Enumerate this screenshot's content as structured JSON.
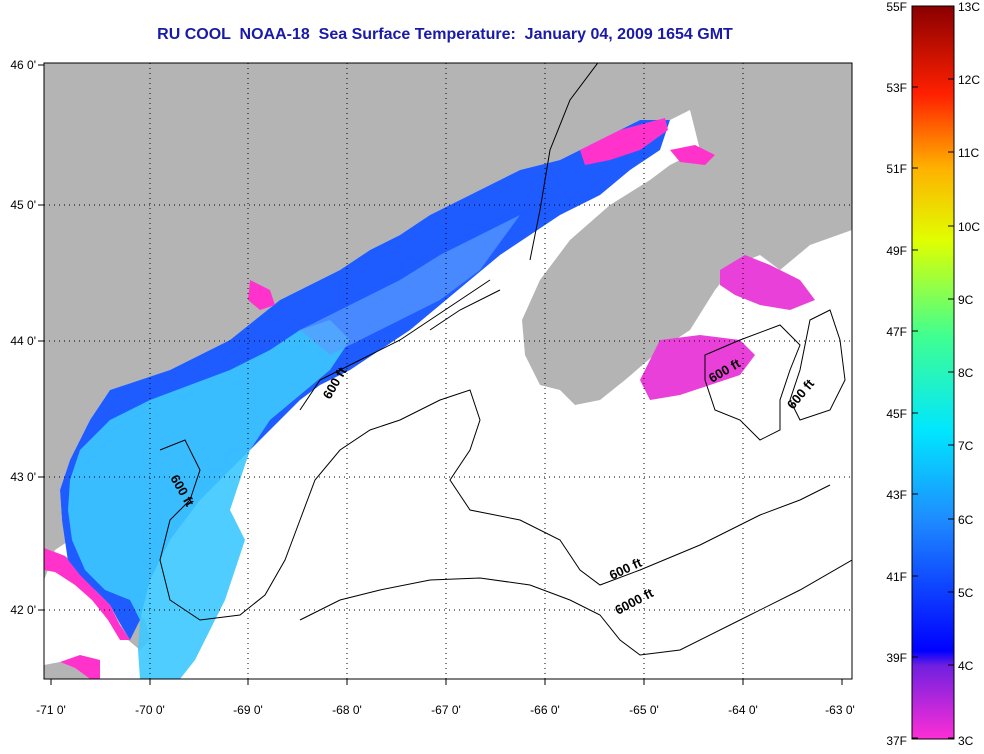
{
  "title": "RU COOL  NOAA-18  Sea Surface Temperature:  January 04, 2009 1654 GMT",
  "map": {
    "lon_labels": [
      "-71 0'",
      "-70 0'",
      "-69 0'",
      "-68 0'",
      "-67 0'",
      "-66 0'",
      "-65 0'",
      "-64 0'",
      "-63 0'"
    ],
    "lat_labels": [
      "46 0'",
      "45 0'",
      "44 0'",
      "43 0'",
      "42 0'"
    ],
    "contour_labels": [
      "600 ft",
      "600 ft",
      "600 ft",
      "600 ft",
      "600 ft",
      "6000 ft"
    ],
    "colors": {
      "land": "#b4b4b4",
      "cloud": "#ffffff",
      "water_cold": "#ff33cc",
      "water_mid": "#1f5cff",
      "water_warm": "#3cc8ff"
    }
  },
  "colorbar": {
    "f_labels": [
      "55F",
      "53F",
      "51F",
      "49F",
      "47F",
      "45F",
      "43F",
      "41F",
      "39F",
      "37F"
    ],
    "c_labels": [
      "13C",
      "12C",
      "11C",
      "10C",
      "9C",
      "8C",
      "7C",
      "6C",
      "5C",
      "4C",
      "3C"
    ]
  }
}
